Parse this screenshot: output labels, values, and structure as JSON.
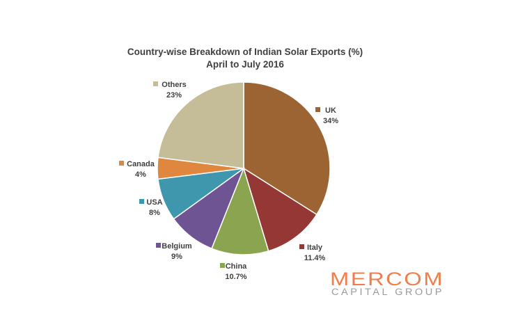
{
  "chart_data": {
    "type": "pie",
    "title": "Country-wise Breakdown of Indian Solar Exports  (%)",
    "subtitle": "April to July 2016",
    "start_angle_deg": 0,
    "direction": "clockwise",
    "slices": [
      {
        "name": "UK",
        "value": 34,
        "label": "34%",
        "color": "#9b6432"
      },
      {
        "name": "Italy",
        "value": 11.4,
        "label": "11.4%",
        "color": "#953734"
      },
      {
        "name": "China",
        "value": 10.7,
        "label": "10.7%",
        "color": "#8aa44f"
      },
      {
        "name": "Belgium",
        "value": 9,
        "label": "9%",
        "color": "#6f5494"
      },
      {
        "name": "USA",
        "value": 8,
        "label": "8%",
        "color": "#3f97ad"
      },
      {
        "name": "Canada",
        "value": 4,
        "label": "4%",
        "color": "#e0873f"
      },
      {
        "name": "Others",
        "value": 23,
        "label": "23%",
        "color": "#c4bd97"
      }
    ]
  },
  "logo": {
    "main": "MERCOM",
    "sub": "CAPITAL GROUP"
  }
}
